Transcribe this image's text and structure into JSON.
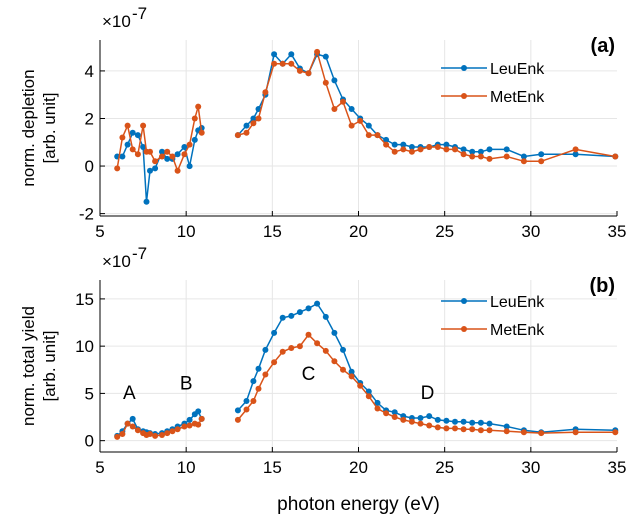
{
  "colors": {
    "leu": "#0072bd",
    "met": "#d95319",
    "grid": "#e6e6e6",
    "axis": "#000000"
  },
  "chart_data": [
    {
      "type": "line",
      "panel_label": "(a)",
      "ylabel_lines": [
        "norm. depletion",
        "[arb. unit]"
      ],
      "multiplier": "×10",
      "exponent": "-7",
      "xlim": [
        5,
        35
      ],
      "ylim": [
        -2.1,
        5.3
      ],
      "xticks": [
        5,
        10,
        15,
        20,
        25,
        30,
        35
      ],
      "yticks": [
        -2,
        0,
        2,
        4
      ],
      "grid": true,
      "legend_position": "top-right",
      "series": [
        {
          "name": "LeuEnk",
          "segments": [
            [
              [
                6.0,
                0.4
              ],
              [
                6.3,
                0.4
              ],
              [
                6.6,
                0.9
              ],
              [
                6.9,
                1.4
              ],
              [
                7.2,
                1.3
              ],
              [
                7.5,
                0.8
              ],
              [
                7.7,
                -1.5
              ],
              [
                7.9,
                -0.2
              ],
              [
                8.2,
                -0.1
              ],
              [
                8.6,
                0.6
              ],
              [
                8.9,
                0.3
              ],
              [
                9.2,
                0.3
              ],
              [
                9.5,
                0.5
              ],
              [
                9.9,
                0.8
              ],
              [
                10.2,
                0.0
              ],
              [
                10.5,
                1.1
              ],
              [
                10.7,
                1.5
              ],
              [
                10.9,
                1.6
              ]
            ],
            [
              [
                13.0,
                1.3
              ],
              [
                13.5,
                1.7
              ],
              [
                13.9,
                2.0
              ],
              [
                14.2,
                2.4
              ],
              [
                14.6,
                3.0
              ],
              [
                15.1,
                4.7
              ],
              [
                15.6,
                4.3
              ],
              [
                16.1,
                4.7
              ],
              [
                16.6,
                4.1
              ],
              [
                17.1,
                3.9
              ],
              [
                17.6,
                4.7
              ],
              [
                18.1,
                4.6
              ],
              [
                18.6,
                3.6
              ],
              [
                19.1,
                2.8
              ],
              [
                19.6,
                2.4
              ],
              [
                20.1,
                2.0
              ],
              [
                20.6,
                1.7
              ],
              [
                21.1,
                1.3
              ],
              [
                21.6,
                1.1
              ],
              [
                22.1,
                0.9
              ],
              [
                22.6,
                0.9
              ],
              [
                23.1,
                0.8
              ],
              [
                23.6,
                0.8
              ],
              [
                24.1,
                0.8
              ],
              [
                24.6,
                0.9
              ],
              [
                25.1,
                0.9
              ],
              [
                25.6,
                0.8
              ],
              [
                26.1,
                0.7
              ],
              [
                26.6,
                0.6
              ],
              [
                27.1,
                0.6
              ],
              [
                27.6,
                0.7
              ],
              [
                28.6,
                0.7
              ],
              [
                29.6,
                0.4
              ],
              [
                30.6,
                0.5
              ],
              [
                32.6,
                0.5
              ],
              [
                34.9,
                0.4
              ]
            ]
          ]
        },
        {
          "name": "MetEnk",
          "segments": [
            [
              [
                6.0,
                -0.1
              ],
              [
                6.3,
                1.2
              ],
              [
                6.6,
                1.7
              ],
              [
                6.9,
                0.7
              ],
              [
                7.2,
                0.5
              ],
              [
                7.5,
                1.7
              ],
              [
                7.7,
                0.6
              ],
              [
                7.9,
                0.6
              ],
              [
                8.2,
                0.2
              ],
              [
                8.6,
                0.4
              ],
              [
                8.9,
                0.6
              ],
              [
                9.2,
                0.4
              ],
              [
                9.5,
                -0.2
              ],
              [
                9.9,
                0.5
              ],
              [
                10.2,
                0.9
              ],
              [
                10.5,
                2.0
              ],
              [
                10.7,
                2.5
              ],
              [
                10.9,
                1.4
              ]
            ],
            [
              [
                13.0,
                1.3
              ],
              [
                13.5,
                1.4
              ],
              [
                13.9,
                1.8
              ],
              [
                14.2,
                2.0
              ],
              [
                14.6,
                3.1
              ],
              [
                15.1,
                4.3
              ],
              [
                15.6,
                4.3
              ],
              [
                16.1,
                4.3
              ],
              [
                16.6,
                4.0
              ],
              [
                17.1,
                3.9
              ],
              [
                17.6,
                4.8
              ],
              [
                18.1,
                3.5
              ],
              [
                18.6,
                2.4
              ],
              [
                19.1,
                2.7
              ],
              [
                19.6,
                1.7
              ],
              [
                20.1,
                1.9
              ],
              [
                20.6,
                1.3
              ],
              [
                21.1,
                1.3
              ],
              [
                21.6,
                0.9
              ],
              [
                22.1,
                0.6
              ],
              [
                22.6,
                0.7
              ],
              [
                23.1,
                0.6
              ],
              [
                23.6,
                0.7
              ],
              [
                24.1,
                0.8
              ],
              [
                24.6,
                0.8
              ],
              [
                25.1,
                0.7
              ],
              [
                25.6,
                0.7
              ],
              [
                26.1,
                0.5
              ],
              [
                26.6,
                0.4
              ],
              [
                27.1,
                0.4
              ],
              [
                27.6,
                0.3
              ],
              [
                28.6,
                0.4
              ],
              [
                29.6,
                0.2
              ],
              [
                30.6,
                0.2
              ],
              [
                32.6,
                0.7
              ],
              [
                34.9,
                0.4
              ]
            ]
          ]
        }
      ]
    },
    {
      "type": "line",
      "panel_label": "(b)",
      "ylabel_lines": [
        "norm. total yield",
        "[arb. unit]"
      ],
      "multiplier": "×10",
      "exponent": "-7",
      "xlabel": "photon energy (eV)",
      "xlim": [
        5,
        35
      ],
      "ylim": [
        -1.2,
        17.0
      ],
      "xticks": [
        5,
        10,
        15,
        20,
        25,
        30,
        35
      ],
      "yticks": [
        0,
        5,
        10,
        15
      ],
      "grid": true,
      "legend_position": "top-right",
      "annotations": [
        {
          "text": "A",
          "x": 6.7,
          "y": 4.4
        },
        {
          "text": "B",
          "x": 10.0,
          "y": 5.4
        },
        {
          "text": "C",
          "x": 17.1,
          "y": 6.4
        },
        {
          "text": "D",
          "x": 24.0,
          "y": 4.4
        }
      ],
      "series": [
        {
          "name": "LeuEnk",
          "segments": [
            [
              [
                6.0,
                0.5
              ],
              [
                6.3,
                1.0
              ],
              [
                6.6,
                1.8
              ],
              [
                6.9,
                2.3
              ],
              [
                7.2,
                1.2
              ],
              [
                7.5,
                1.0
              ],
              [
                7.7,
                0.9
              ],
              [
                7.9,
                0.8
              ],
              [
                8.2,
                0.7
              ],
              [
                8.6,
                0.8
              ],
              [
                8.9,
                1.0
              ],
              [
                9.2,
                1.2
              ],
              [
                9.5,
                1.5
              ],
              [
                9.9,
                1.8
              ],
              [
                10.2,
                2.2
              ],
              [
                10.5,
                2.8
              ],
              [
                10.7,
                3.1
              ],
              [
                10.9,
                2.3
              ]
            ],
            [
              [
                13.0,
                3.2
              ],
              [
                13.5,
                4.2
              ],
              [
                13.9,
                6.3
              ],
              [
                14.2,
                7.6
              ],
              [
                14.6,
                9.6
              ],
              [
                15.1,
                11.4
              ],
              [
                15.6,
                13.0
              ],
              [
                16.1,
                13.2
              ],
              [
                16.6,
                13.6
              ],
              [
                17.1,
                14.0
              ],
              [
                17.6,
                14.5
              ],
              [
                18.1,
                13.1
              ],
              [
                18.6,
                11.4
              ],
              [
                19.1,
                9.6
              ],
              [
                19.6,
                7.3
              ],
              [
                20.1,
                6.1
              ],
              [
                20.6,
                5.2
              ],
              [
                21.1,
                4.0
              ],
              [
                21.6,
                3.2
              ],
              [
                22.1,
                3.0
              ],
              [
                22.6,
                2.6
              ],
              [
                23.1,
                2.4
              ],
              [
                23.6,
                2.4
              ],
              [
                24.1,
                2.6
              ],
              [
                24.6,
                2.2
              ],
              [
                25.1,
                2.1
              ],
              [
                25.6,
                2.0
              ],
              [
                26.1,
                2.0
              ],
              [
                26.6,
                1.9
              ],
              [
                27.1,
                1.9
              ],
              [
                27.6,
                1.8
              ],
              [
                28.6,
                1.5
              ],
              [
                29.6,
                1.1
              ],
              [
                30.6,
                0.9
              ],
              [
                32.6,
                1.2
              ],
              [
                34.9,
                1.1
              ]
            ]
          ]
        },
        {
          "name": "MetEnk",
          "segments": [
            [
              [
                6.0,
                0.4
              ],
              [
                6.3,
                0.7
              ],
              [
                6.6,
                1.8
              ],
              [
                6.9,
                1.5
              ],
              [
                7.2,
                1.1
              ],
              [
                7.5,
                0.8
              ],
              [
                7.7,
                0.6
              ],
              [
                7.9,
                0.7
              ],
              [
                8.2,
                0.5
              ],
              [
                8.6,
                0.6
              ],
              [
                8.9,
                0.8
              ],
              [
                9.2,
                1.0
              ],
              [
                9.5,
                1.2
              ],
              [
                9.9,
                1.5
              ],
              [
                10.2,
                1.6
              ],
              [
                10.5,
                1.8
              ],
              [
                10.7,
                1.7
              ],
              [
                10.9,
                2.3
              ]
            ],
            [
              [
                13.0,
                2.2
              ],
              [
                13.5,
                3.3
              ],
              [
                13.9,
                4.2
              ],
              [
                14.2,
                5.5
              ],
              [
                14.6,
                7.0
              ],
              [
                15.1,
                8.3
              ],
              [
                15.6,
                9.4
              ],
              [
                16.1,
                9.8
              ],
              [
                16.6,
                10.0
              ],
              [
                17.1,
                11.2
              ],
              [
                17.6,
                10.3
              ],
              [
                18.1,
                9.5
              ],
              [
                18.6,
                8.4
              ],
              [
                19.1,
                7.5
              ],
              [
                19.6,
                6.8
              ],
              [
                20.1,
                5.8
              ],
              [
                20.6,
                4.7
              ],
              [
                21.1,
                3.4
              ],
              [
                21.6,
                2.9
              ],
              [
                22.1,
                2.5
              ],
              [
                22.6,
                2.2
              ],
              [
                23.1,
                2.0
              ],
              [
                23.6,
                1.8
              ],
              [
                24.1,
                1.6
              ],
              [
                24.6,
                1.4
              ],
              [
                25.1,
                1.3
              ],
              [
                25.6,
                1.3
              ],
              [
                26.1,
                1.2
              ],
              [
                26.6,
                1.2
              ],
              [
                27.1,
                1.1
              ],
              [
                27.6,
                1.1
              ],
              [
                28.6,
                1.0
              ],
              [
                29.6,
                0.9
              ],
              [
                30.6,
                0.8
              ],
              [
                32.6,
                0.9
              ],
              [
                34.9,
                0.9
              ]
            ]
          ]
        }
      ]
    }
  ]
}
